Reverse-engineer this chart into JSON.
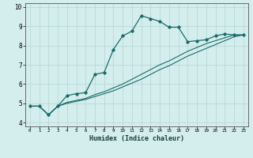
{
  "xlabel": "Humidex (Indice chaleur)",
  "bg_color": "#d4eeed",
  "grid_color": "#b8d8d8",
  "line_color": "#1a6b6b",
  "xlim": [
    -0.5,
    23.5
  ],
  "ylim": [
    3.8,
    10.2
  ],
  "xticks": [
    0,
    1,
    2,
    3,
    4,
    5,
    6,
    7,
    8,
    9,
    10,
    11,
    12,
    13,
    14,
    15,
    16,
    17,
    18,
    19,
    20,
    21,
    22,
    23
  ],
  "yticks": [
    4,
    5,
    6,
    7,
    8,
    9,
    10
  ],
  "curve1_x": [
    0,
    1,
    2,
    3,
    4,
    5,
    6,
    7,
    8,
    9,
    10,
    11,
    12,
    13,
    14,
    15,
    16,
    17,
    18,
    19,
    20,
    21,
    22,
    23
  ],
  "curve1_y": [
    4.85,
    4.85,
    4.4,
    4.85,
    5.4,
    5.5,
    5.55,
    6.5,
    6.6,
    7.8,
    8.5,
    8.75,
    9.55,
    9.4,
    9.25,
    8.95,
    8.95,
    8.2,
    8.25,
    8.3,
    8.5,
    8.6,
    8.55,
    8.55
  ],
  "curve2_x": [
    0,
    1,
    2,
    3,
    4,
    5,
    6,
    7,
    8,
    9,
    10,
    11,
    12,
    13,
    14,
    15,
    16,
    17,
    18,
    19,
    20,
    21,
    22,
    23
  ],
  "curve2_y": [
    4.85,
    4.85,
    4.4,
    4.85,
    5.05,
    5.15,
    5.25,
    5.45,
    5.6,
    5.8,
    6.0,
    6.25,
    6.5,
    6.75,
    7.0,
    7.2,
    7.45,
    7.7,
    7.9,
    8.1,
    8.25,
    8.4,
    8.55,
    8.55
  ],
  "curve3_x": [
    0,
    1,
    2,
    3,
    4,
    5,
    6,
    7,
    8,
    9,
    10,
    11,
    12,
    13,
    14,
    15,
    16,
    17,
    18,
    19,
    20,
    21,
    22,
    23
  ],
  "curve3_y": [
    4.85,
    4.85,
    4.4,
    4.85,
    5.0,
    5.1,
    5.2,
    5.35,
    5.5,
    5.65,
    5.85,
    6.05,
    6.25,
    6.5,
    6.75,
    6.95,
    7.2,
    7.45,
    7.65,
    7.85,
    8.05,
    8.25,
    8.45,
    8.55
  ]
}
